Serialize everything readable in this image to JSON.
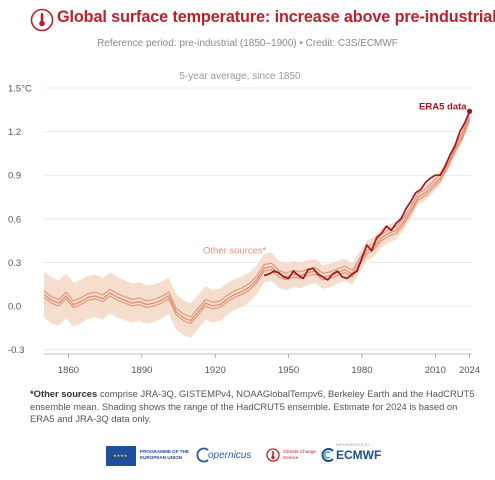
{
  "header": {
    "title": "Global surface temperature: increase above pre-industrial",
    "subtitle": "Reference period: pre-industrial (1850–1900) • Credit: C3S/ECMWF"
  },
  "footnote": {
    "bold": "*Other sources",
    "text": " comprise JRA-3Q, GISTEMPv4, NOAAGlobalTempv6, Berkeley Earth and the HadCRUT5 ensemble mean. Shading shows the range of the HadCRUT5 ensemble. Estimate for 2024 is based on ERA5 and JRA-3Q data only."
  },
  "partners": {
    "eu": "PROGRAMME OF THE EUROPEAN UNION",
    "copernicus": "opernicus",
    "c3s": "Climate Change Service",
    "ecmwf_small": "IMPLEMENTED BY",
    "ecmwf": "ECMWF"
  },
  "colors": {
    "title": "#b8222c",
    "era5": "#a3181e",
    "other": "#e0927a",
    "shade": "#f5d8c6"
  },
  "chart_data": {
    "type": "line",
    "title": "5-year average, since 1850",
    "xlabel": "",
    "ylabel": "",
    "y_unit": "°C",
    "ylim": [
      -0.33,
      1.5
    ],
    "xlim": [
      1850,
      2025
    ],
    "grid": true,
    "yticks": [
      -0.3,
      0.0,
      0.3,
      0.6,
      0.9,
      1.2,
      1.5
    ],
    "ytick_labels": [
      "-0.3",
      "0.0",
      "0.3",
      "0.6",
      "0.9",
      "1.2",
      "1.5°C"
    ],
    "xticks": [
      1860,
      1890,
      1920,
      1950,
      1980,
      2010,
      2024
    ],
    "annotations": [
      {
        "text": "ERA5 data",
        "series": "ERA5"
      },
      {
        "text": "Other sources*",
        "series": "Other sources"
      }
    ],
    "series": [
      {
        "name": "ERA5",
        "x": [
          1940,
          1942,
          1944,
          1946,
          1948,
          1950,
          1952,
          1954,
          1956,
          1958,
          1960,
          1962,
          1964,
          1966,
          1968,
          1970,
          1972,
          1974,
          1976,
          1978,
          1980,
          1982,
          1984,
          1986,
          1988,
          1990,
          1992,
          1994,
          1996,
          1998,
          2000,
          2002,
          2004,
          2006,
          2008,
          2010,
          2012,
          2014,
          2016,
          2018,
          2020,
          2022,
          2024
        ],
        "values": [
          0.21,
          0.22,
          0.24,
          0.23,
          0.2,
          0.19,
          0.24,
          0.21,
          0.19,
          0.25,
          0.26,
          0.22,
          0.2,
          0.18,
          0.22,
          0.24,
          0.2,
          0.19,
          0.22,
          0.24,
          0.33,
          0.42,
          0.38,
          0.47,
          0.5,
          0.55,
          0.52,
          0.57,
          0.6,
          0.67,
          0.72,
          0.78,
          0.8,
          0.85,
          0.88,
          0.9,
          0.9,
          0.96,
          1.04,
          1.1,
          1.2,
          1.26,
          1.34
        ]
      },
      {
        "name": "Other sources",
        "x": [
          1850,
          1853,
          1856,
          1859,
          1862,
          1865,
          1868,
          1871,
          1874,
          1877,
          1880,
          1883,
          1886,
          1889,
          1892,
          1895,
          1898,
          1901,
          1904,
          1907,
          1910,
          1913,
          1916,
          1919,
          1922,
          1925,
          1928,
          1931,
          1934,
          1937,
          1940,
          1943,
          1946,
          1949,
          1952,
          1955,
          1958,
          1961,
          1964,
          1967,
          1970,
          1973,
          1976,
          1979,
          1982,
          1985,
          1988,
          1991,
          1994,
          1997,
          2000,
          2003,
          2006,
          2009,
          2012,
          2015,
          2018,
          2021,
          2024
        ],
        "values": [
          0.08,
          0.04,
          0.02,
          0.07,
          0.01,
          0.03,
          0.06,
          0.07,
          0.05,
          0.09,
          0.06,
          0.04,
          0.02,
          0.03,
          0.01,
          0.02,
          0.04,
          0.07,
          -0.04,
          -0.08,
          -0.1,
          -0.04,
          0.02,
          0.0,
          0.01,
          0.05,
          0.08,
          0.1,
          0.13,
          0.18,
          0.26,
          0.27,
          0.22,
          0.2,
          0.22,
          0.21,
          0.23,
          0.24,
          0.2,
          0.21,
          0.23,
          0.25,
          0.22,
          0.3,
          0.38,
          0.41,
          0.47,
          0.5,
          0.52,
          0.58,
          0.66,
          0.75,
          0.78,
          0.83,
          0.88,
          0.97,
          1.08,
          1.17,
          1.3
        ]
      }
    ]
  }
}
